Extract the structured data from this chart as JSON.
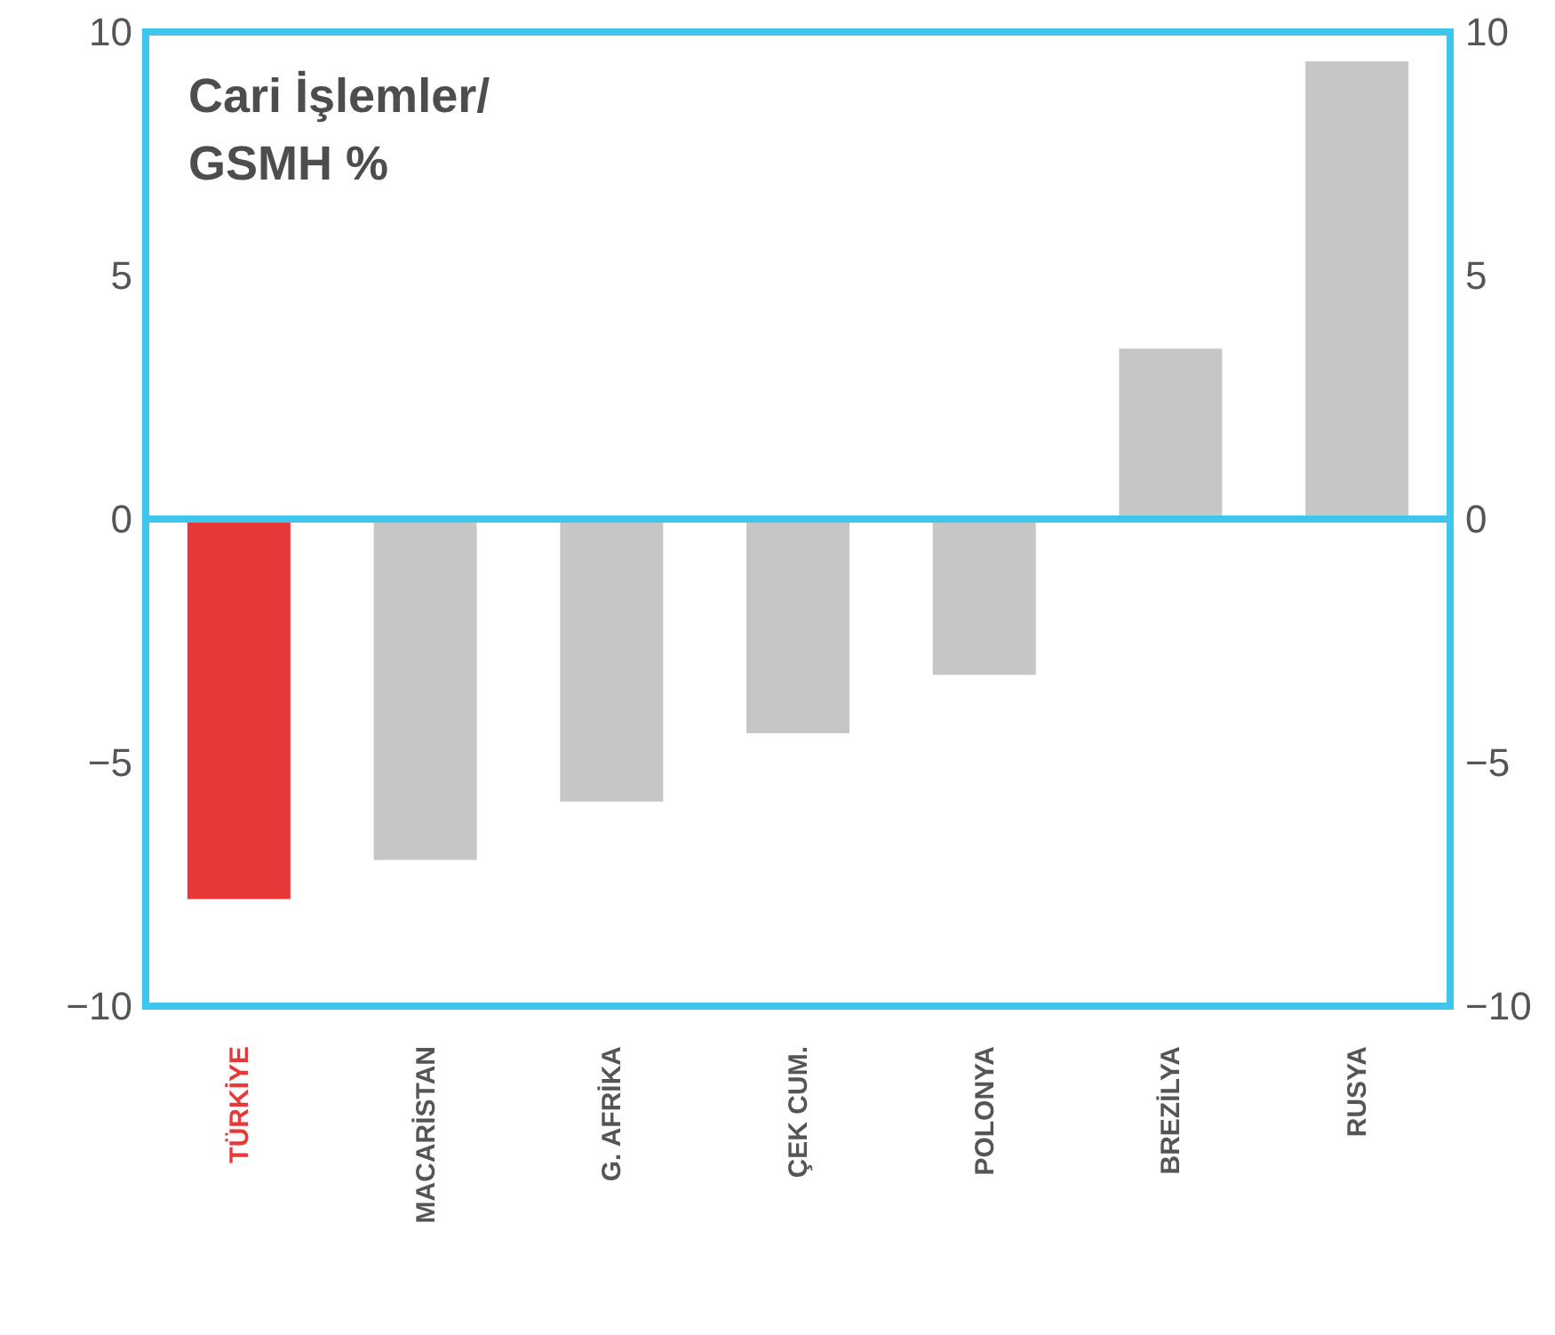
{
  "chart_data": {
    "type": "bar",
    "title": "Cari İşlemler/ GSMH %",
    "categories": [
      "TÜRKİYE",
      "MACARİSTAN",
      "G. AFRİKA",
      "ÇEK CUM.",
      "POLONYA",
      "BREZİLYA",
      "RUSYA"
    ],
    "values": [
      -7.8,
      -7.0,
      -5.8,
      -4.4,
      -3.2,
      3.5,
      9.4
    ],
    "colors": [
      "#e8383a",
      "#c5c6c8",
      "#c5c6c8",
      "#c5c6c8",
      "#c5c6c8",
      "#c5c6c8",
      "#c5c6c8"
    ],
    "ylim": [
      -10,
      10
    ],
    "yticks": [
      -10,
      -5,
      0,
      5,
      10
    ],
    "y2lim": [
      -10,
      10
    ],
    "y2ticks": [
      -10,
      -5,
      0,
      5,
      10
    ],
    "ref_lines": [
      {
        "axis": "y",
        "value": 0,
        "color": "#3ec6ec"
      }
    ],
    "grid": false
  }
}
